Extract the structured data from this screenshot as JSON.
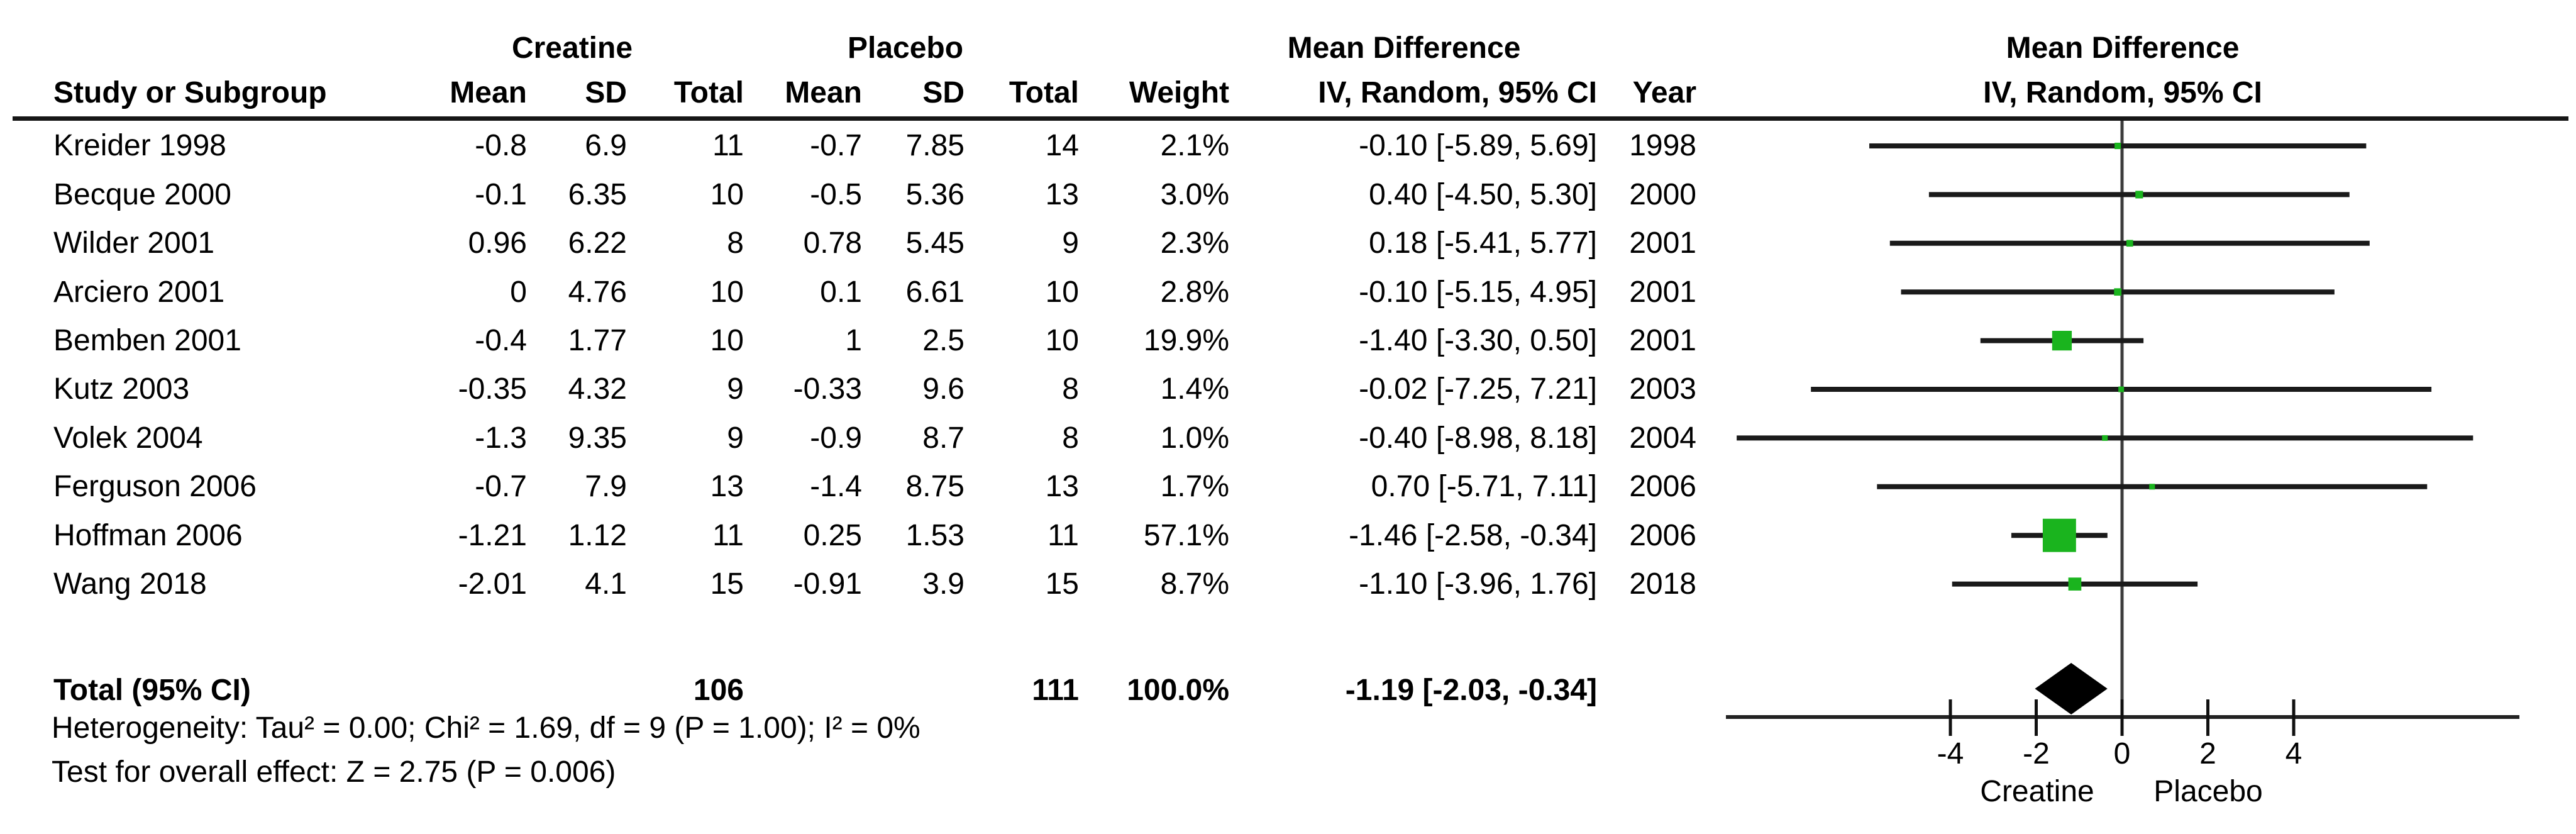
{
  "table": {
    "headers": {
      "study": "Study or Subgroup",
      "group1": "Creatine",
      "group2": "Placebo",
      "mean1": "Mean",
      "sd1": "SD",
      "total1": "Total",
      "mean2": "Mean",
      "sd2": "SD",
      "total2": "Total",
      "weight": "Weight",
      "md_table": "Mean Difference",
      "iv_ci": "IV, Random, 95% CI",
      "year": "Year",
      "md_plot": "Mean Difference",
      "iv_ci_plot": "IV, Random, 95% CI"
    },
    "rows": [
      {
        "study": "Kreider 1998",
        "c_mean": "-0.8",
        "c_sd": "6.9",
        "c_total": "11",
        "p_mean": "-0.7",
        "p_sd": "7.85",
        "p_total": "14",
        "weight": "2.1%",
        "ci": "-0.10 [-5.89, 5.69]",
        "year": "1998"
      },
      {
        "study": "Becque 2000",
        "c_mean": "-0.1",
        "c_sd": "6.35",
        "c_total": "10",
        "p_mean": "-0.5",
        "p_sd": "5.36",
        "p_total": "13",
        "weight": "3.0%",
        "ci": "0.40 [-4.50, 5.30]",
        "year": "2000"
      },
      {
        "study": "Wilder 2001",
        "c_mean": "0.96",
        "c_sd": "6.22",
        "c_total": "8",
        "p_mean": "0.78",
        "p_sd": "5.45",
        "p_total": "9",
        "weight": "2.3%",
        "ci": "0.18 [-5.41, 5.77]",
        "year": "2001"
      },
      {
        "study": "Arciero 2001",
        "c_mean": "0",
        "c_sd": "4.76",
        "c_total": "10",
        "p_mean": "0.1",
        "p_sd": "6.61",
        "p_total": "10",
        "weight": "2.8%",
        "ci": "-0.10 [-5.15, 4.95]",
        "year": "2001"
      },
      {
        "study": "Bemben 2001",
        "c_mean": "-0.4",
        "c_sd": "1.77",
        "c_total": "10",
        "p_mean": "1",
        "p_sd": "2.5",
        "p_total": "10",
        "weight": "19.9%",
        "ci": "-1.40 [-3.30, 0.50]",
        "year": "2001"
      },
      {
        "study": "Kutz 2003",
        "c_mean": "-0.35",
        "c_sd": "4.32",
        "c_total": "9",
        "p_mean": "-0.33",
        "p_sd": "9.6",
        "p_total": "8",
        "weight": "1.4%",
        "ci": "-0.02 [-7.25, 7.21]",
        "year": "2003"
      },
      {
        "study": "Volek 2004",
        "c_mean": "-1.3",
        "c_sd": "9.35",
        "c_total": "9",
        "p_mean": "-0.9",
        "p_sd": "8.7",
        "p_total": "8",
        "weight": "1.0%",
        "ci": "-0.40 [-8.98, 8.18]",
        "year": "2004"
      },
      {
        "study": "Ferguson 2006",
        "c_mean": "-0.7",
        "c_sd": "7.9",
        "c_total": "13",
        "p_mean": "-1.4",
        "p_sd": "8.75",
        "p_total": "13",
        "weight": "1.7%",
        "ci": "0.70 [-5.71, 7.11]",
        "year": "2006"
      },
      {
        "study": "Hoffman 2006",
        "c_mean": "-1.21",
        "c_sd": "1.12",
        "c_total": "11",
        "p_mean": "0.25",
        "p_sd": "1.53",
        "p_total": "11",
        "weight": "57.1%",
        "ci": "-1.46 [-2.58, -0.34]",
        "year": "2006"
      },
      {
        "study": "Wang 2018",
        "c_mean": "-2.01",
        "c_sd": "4.1",
        "c_total": "15",
        "p_mean": "-0.91",
        "p_sd": "3.9",
        "p_total": "15",
        "weight": "8.7%",
        "ci": "-1.10 [-3.96, 1.76]",
        "year": "2018"
      }
    ],
    "total_row": {
      "label": "Total (95% CI)",
      "c_total": "106",
      "p_total": "111",
      "weight": "100.0%",
      "ci": "-1.19 [-2.03, -0.34]"
    },
    "footer": {
      "heterogeneity": "Heterogeneity: Tau² = 0.00; Chi² = 1.69, df = 9 (P = 1.00); I² = 0%",
      "overall": "Test for overall effect: Z = 2.75 (P = 0.006)"
    }
  },
  "chart_data": {
    "type": "scatter",
    "variant": "forest-plot-mean-difference",
    "effect_measure": "Mean Difference, IV, Random, 95% CI",
    "x_axis": {
      "ticks": [
        -4,
        -2,
        0,
        2,
        4
      ],
      "xlim": [
        -9.25,
        9.25
      ],
      "left_label": "Creatine",
      "right_label": "Placebo",
      "grid": false
    },
    "studies": [
      {
        "label": "Kreider 1998",
        "creatine": {
          "mean": -0.8,
          "sd": 6.9,
          "total": 11
        },
        "placebo": {
          "mean": -0.7,
          "sd": 7.85,
          "total": 14
        },
        "weight_pct": 2.1,
        "md": -0.1,
        "ci_low": -5.89,
        "ci_high": 5.69,
        "year": 1998
      },
      {
        "label": "Becque 2000",
        "creatine": {
          "mean": -0.1,
          "sd": 6.35,
          "total": 10
        },
        "placebo": {
          "mean": -0.5,
          "sd": 5.36,
          "total": 13
        },
        "weight_pct": 3.0,
        "md": 0.4,
        "ci_low": -4.5,
        "ci_high": 5.3,
        "year": 2000
      },
      {
        "label": "Wilder 2001",
        "creatine": {
          "mean": 0.96,
          "sd": 6.22,
          "total": 8
        },
        "placebo": {
          "mean": 0.78,
          "sd": 5.45,
          "total": 9
        },
        "weight_pct": 2.3,
        "md": 0.18,
        "ci_low": -5.41,
        "ci_high": 5.77,
        "year": 2001
      },
      {
        "label": "Arciero 2001",
        "creatine": {
          "mean": 0,
          "sd": 4.76,
          "total": 10
        },
        "placebo": {
          "mean": 0.1,
          "sd": 6.61,
          "total": 10
        },
        "weight_pct": 2.8,
        "md": -0.1,
        "ci_low": -5.15,
        "ci_high": 4.95,
        "year": 2001
      },
      {
        "label": "Bemben 2001",
        "creatine": {
          "mean": -0.4,
          "sd": 1.77,
          "total": 10
        },
        "placebo": {
          "mean": 1,
          "sd": 2.5,
          "total": 10
        },
        "weight_pct": 19.9,
        "md": -1.4,
        "ci_low": -3.3,
        "ci_high": 0.5,
        "year": 2001
      },
      {
        "label": "Kutz 2003",
        "creatine": {
          "mean": -0.35,
          "sd": 4.32,
          "total": 9
        },
        "placebo": {
          "mean": -0.33,
          "sd": 9.6,
          "total": 8
        },
        "weight_pct": 1.4,
        "md": -0.02,
        "ci_low": -7.25,
        "ci_high": 7.21,
        "year": 2003
      },
      {
        "label": "Volek 2004",
        "creatine": {
          "mean": -1.3,
          "sd": 9.35,
          "total": 9
        },
        "placebo": {
          "mean": -0.9,
          "sd": 8.7,
          "total": 8
        },
        "weight_pct": 1.0,
        "md": -0.4,
        "ci_low": -8.98,
        "ci_high": 8.18,
        "year": 2004
      },
      {
        "label": "Ferguson 2006",
        "creatine": {
          "mean": -0.7,
          "sd": 7.9,
          "total": 13
        },
        "placebo": {
          "mean": -1.4,
          "sd": 8.75,
          "total": 13
        },
        "weight_pct": 1.7,
        "md": 0.7,
        "ci_low": -5.71,
        "ci_high": 7.11,
        "year": 2006
      },
      {
        "label": "Hoffman 2006",
        "creatine": {
          "mean": -1.21,
          "sd": 1.12,
          "total": 11
        },
        "placebo": {
          "mean": 0.25,
          "sd": 1.53,
          "total": 11
        },
        "weight_pct": 57.1,
        "md": -1.46,
        "ci_low": -2.58,
        "ci_high": -0.34,
        "year": 2006
      },
      {
        "label": "Wang 2018",
        "creatine": {
          "mean": -2.01,
          "sd": 4.1,
          "total": 15
        },
        "placebo": {
          "mean": -0.91,
          "sd": 3.9,
          "total": 15
        },
        "weight_pct": 8.7,
        "md": -1.1,
        "ci_low": -3.96,
        "ci_high": 1.76,
        "year": 2018
      }
    ],
    "total": {
      "label": "Total (95% CI)",
      "creatine_total": 106,
      "placebo_total": 111,
      "weight_pct": 100.0,
      "md": -1.19,
      "ci_low": -2.03,
      "ci_high": -0.34
    },
    "heterogeneity": "Tau² = 0.00; Chi² = 1.69, df = 9 (P = 1.00); I² = 0%",
    "overall_effect": "Z = 2.75 (P = 0.006)",
    "marker_color": "#1ab41e",
    "diamond_color": "#000000",
    "line_color": "#1a1a1a"
  }
}
